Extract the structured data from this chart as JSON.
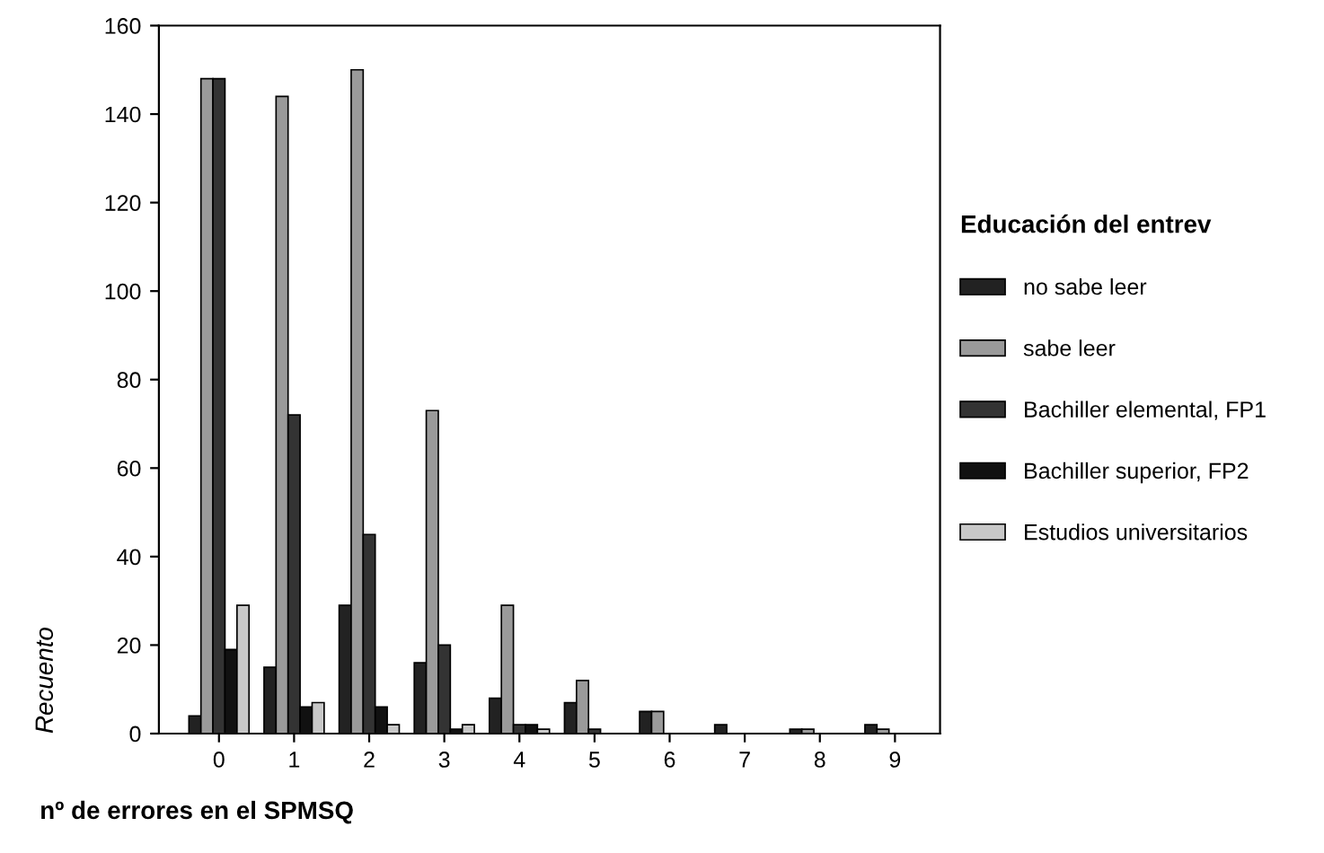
{
  "chart_data": {
    "type": "bar",
    "xlabel": "nº de errores en el SPMSQ",
    "ylabel": "Recuento",
    "legend_title": "Educación del entrev",
    "categories": [
      "0",
      "1",
      "2",
      "3",
      "4",
      "5",
      "6",
      "7",
      "8",
      "9"
    ],
    "series": [
      {
        "name": "no sabe leer",
        "color": "#222222",
        "values": [
          4,
          15,
          29,
          16,
          8,
          7,
          5,
          2,
          1,
          2
        ]
      },
      {
        "name": "sabe leer",
        "color": "#9a9a9a",
        "values": [
          148,
          144,
          150,
          73,
          29,
          12,
          5,
          0,
          1,
          1
        ]
      },
      {
        "name": "Bachiller elemental, FP1",
        "color": "#333333",
        "values": [
          148,
          72,
          45,
          20,
          2,
          1,
          0,
          0,
          0,
          0
        ]
      },
      {
        "name": "Bachiller superior, FP2",
        "color": "#111111",
        "values": [
          19,
          6,
          6,
          1,
          2,
          0,
          0,
          0,
          0,
          0
        ]
      },
      {
        "name": "Estudios universitarios",
        "color": "#c8c8c8",
        "values": [
          29,
          7,
          2,
          2,
          1,
          0,
          0,
          0,
          0,
          0
        ]
      }
    ],
    "ylim": [
      0,
      160
    ],
    "yticks": [
      0,
      20,
      40,
      60,
      80,
      100,
      120,
      140,
      160
    ],
    "grid": false,
    "legend": "right"
  }
}
